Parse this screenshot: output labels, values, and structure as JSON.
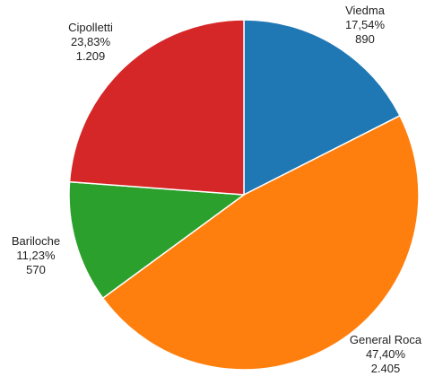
{
  "chart_data": {
    "type": "pie",
    "categories": [
      "Viedma",
      "General Roca",
      "Bariloche",
      "Cipolletti"
    ],
    "values": [
      890,
      2405,
      570,
      1209
    ],
    "value_labels": [
      "890",
      "2.405",
      "570",
      "1.209"
    ],
    "percentages": [
      17.54,
      47.4,
      11.23,
      23.83
    ],
    "percentage_labels": [
      "17,54%",
      "47,40%",
      "11,23%",
      "23,83%"
    ],
    "colors": [
      "#1f77b4",
      "#ff7f0e",
      "#2ca02c",
      "#d62728"
    ]
  }
}
